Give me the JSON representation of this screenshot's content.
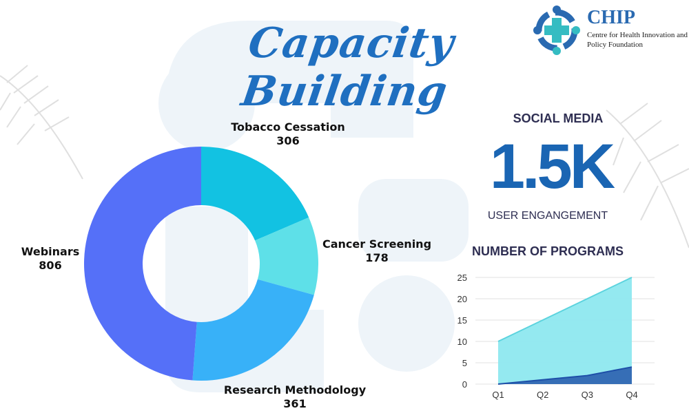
{
  "title": "Capacity Building",
  "logo": {
    "name": "CHIP",
    "full_name": "Centre for Health Innovation and Policy Foundation"
  },
  "colors": {
    "title": "#1f6fc0",
    "tobacco": "#12c2e2",
    "cancer": "#5ee0e8",
    "research": "#38b1f8",
    "webinars": "#5570f8",
    "area_total": "#8ee8ef",
    "area_line": "#1e4fa8"
  },
  "social": {
    "heading": "SOCIAL MEDIA",
    "value": "1.5K",
    "caption": "USER ENGANGEMENT"
  },
  "chart_data": [
    {
      "type": "pie",
      "variant": "donut",
      "categories": [
        "Tobacco Cessation",
        "Cancer Screening",
        "Research Methodology",
        "Webinars"
      ],
      "values": [
        306,
        178,
        361,
        806
      ],
      "value_labels": [
        "306",
        "178",
        "361",
        "806"
      ]
    },
    {
      "type": "area",
      "title": "NUMBER OF PROGRAMS",
      "categories": [
        "Q1",
        "Q2",
        "Q3",
        "Q4"
      ],
      "series": [
        {
          "values": [
            10,
            15,
            20,
            25
          ]
        },
        {
          "values": [
            0,
            1,
            2,
            4
          ]
        }
      ],
      "ylim": [
        0,
        25
      ],
      "yticks": [
        "0",
        "5",
        "10",
        "15",
        "20",
        "25"
      ],
      "grid": true
    }
  ]
}
